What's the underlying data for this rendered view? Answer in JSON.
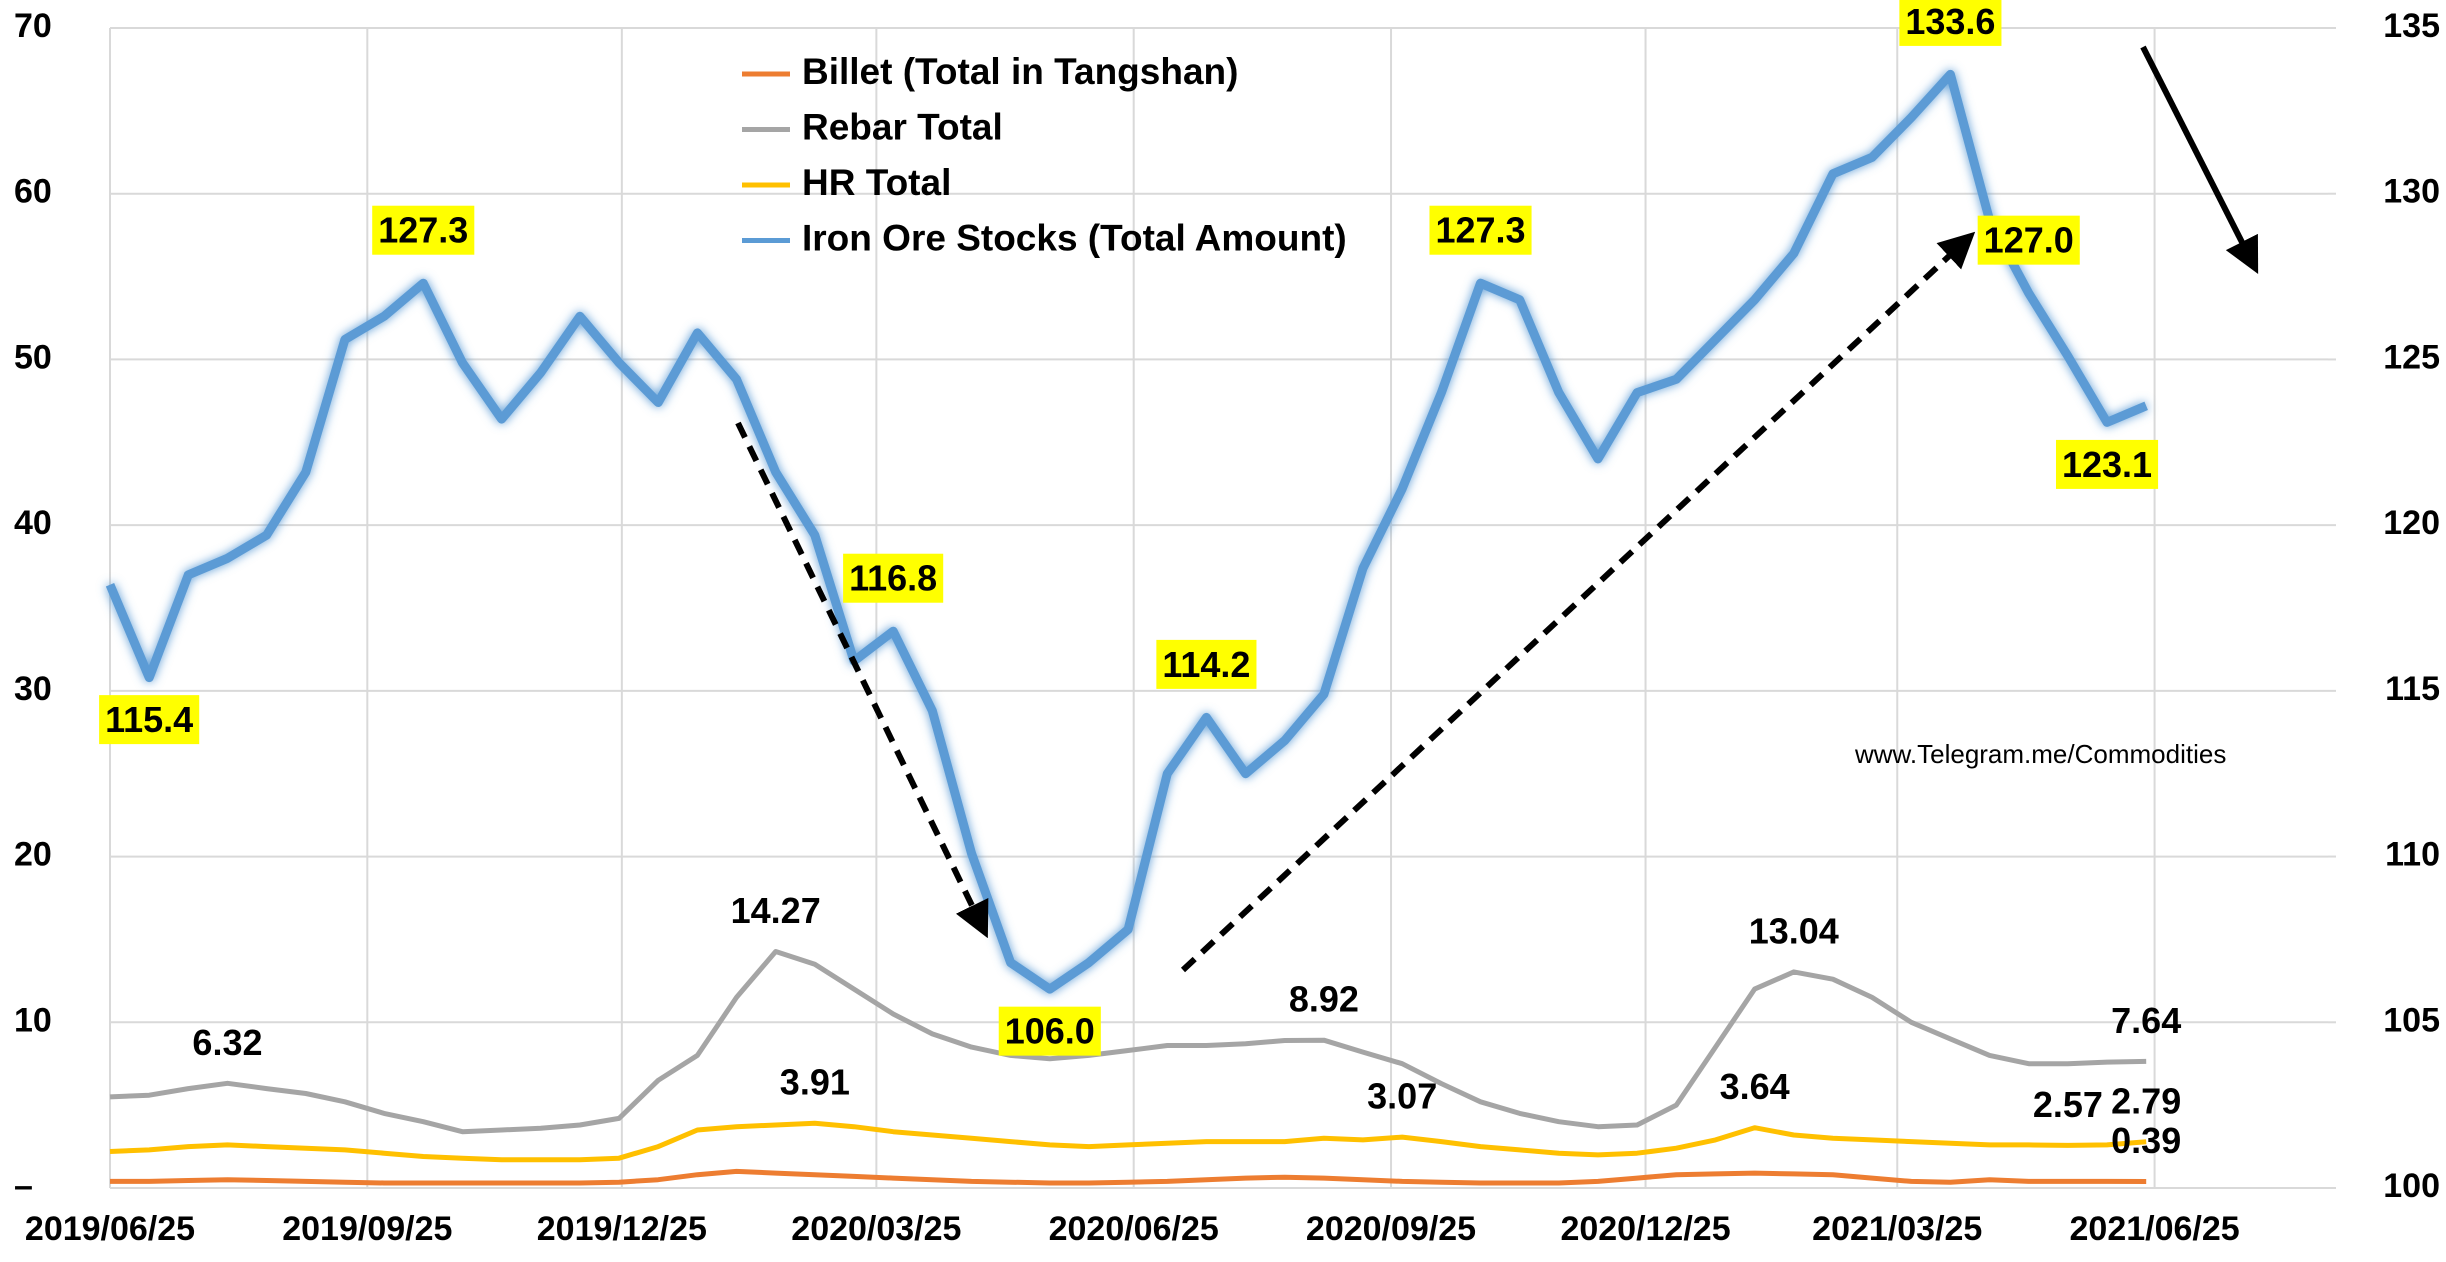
{
  "chart_data": {
    "type": "line",
    "x": [
      "2019/06/25",
      "2019/07/09",
      "2019/07/23",
      "2019/08/06",
      "2019/08/20",
      "2019/09/03",
      "2019/09/17",
      "2019/10/01",
      "2019/10/15",
      "2019/10/29",
      "2019/11/12",
      "2019/11/26",
      "2019/12/10",
      "2019/12/24",
      "2020/01/07",
      "2020/01/21",
      "2020/02/04",
      "2020/02/18",
      "2020/03/03",
      "2020/03/17",
      "2020/03/31",
      "2020/04/14",
      "2020/04/28",
      "2020/05/12",
      "2020/05/26",
      "2020/06/09",
      "2020/06/23",
      "2020/07/07",
      "2020/07/21",
      "2020/08/04",
      "2020/08/18",
      "2020/09/01",
      "2020/09/15",
      "2020/09/29",
      "2020/10/13",
      "2020/10/27",
      "2020/11/10",
      "2020/11/24",
      "2020/12/08",
      "2020/12/22",
      "2021/01/05",
      "2021/01/19",
      "2021/02/02",
      "2021/02/16",
      "2021/03/02",
      "2021/03/16",
      "2021/03/30",
      "2021/04/13",
      "2021/04/27",
      "2021/05/11",
      "2021/05/25",
      "2021/06/08",
      "2021/06/22"
    ],
    "xlim": [
      "2019/06/25",
      "2021/08/26"
    ],
    "xticks": [
      "2019/06/25",
      "2019/09/25",
      "2019/12/25",
      "2020/03/25",
      "2020/06/25",
      "2020/09/25",
      "2020/12/25",
      "2021/03/25",
      "2021/06/25"
    ],
    "ylim": [
      0,
      70
    ],
    "yticks": [
      {
        "value": 0,
        "label": "–"
      },
      10,
      20,
      30,
      40,
      50,
      60,
      70
    ],
    "y2lim": [
      100,
      135
    ],
    "y2ticks": [
      100,
      105,
      110,
      115,
      120,
      125,
      130,
      135
    ],
    "grid": true,
    "annotation": "www.Telegram.me/Commodities",
    "series": [
      {
        "name": "Billet (Total in Tangshan)",
        "color": "#ed7d31",
        "values": [
          0.4,
          0.4,
          0.45,
          0.5,
          0.45,
          0.4,
          0.35,
          0.3,
          0.3,
          0.3,
          0.3,
          0.3,
          0.3,
          0.35,
          0.5,
          0.8,
          1.0,
          0.9,
          0.8,
          0.7,
          0.6,
          0.5,
          0.4,
          0.35,
          0.3,
          0.3,
          0.35,
          0.4,
          0.5,
          0.6,
          0.65,
          0.6,
          0.5,
          0.4,
          0.35,
          0.3,
          0.3,
          0.3,
          0.4,
          0.6,
          0.8,
          0.85,
          0.9,
          0.85,
          0.8,
          0.6,
          0.4,
          0.35,
          0.5,
          0.4,
          0.4,
          0.4,
          0.39
        ],
        "value_labels": [
          null,
          null,
          null,
          null,
          null,
          null,
          null,
          null,
          null,
          null,
          null,
          null,
          null,
          null,
          null,
          null,
          null,
          null,
          null,
          null,
          null,
          null,
          null,
          null,
          null,
          null,
          null,
          null,
          null,
          null,
          null,
          null,
          null,
          null,
          null,
          null,
          null,
          null,
          null,
          null,
          null,
          null,
          null,
          null,
          null,
          null,
          null,
          null,
          null,
          null,
          null,
          null,
          "0.39"
        ]
      },
      {
        "name": "Rebar Total",
        "color": "#a5a5a5",
        "values": [
          5.5,
          5.6,
          6.0,
          6.32,
          6.0,
          5.7,
          5.2,
          4.5,
          4.0,
          3.4,
          3.5,
          3.6,
          3.8,
          4.2,
          6.5,
          8.0,
          11.5,
          14.27,
          13.5,
          12.0,
          10.5,
          9.3,
          8.5,
          8.0,
          7.8,
          8.0,
          8.3,
          8.6,
          8.6,
          8.7,
          8.9,
          8.92,
          8.2,
          7.5,
          6.3,
          5.2,
          4.5,
          4.0,
          3.7,
          3.8,
          5.0,
          8.5,
          12.0,
          13.04,
          12.6,
          11.5,
          10.0,
          9.0,
          8.0,
          7.5,
          7.5,
          7.6,
          7.64
        ],
        "value_labels": [
          null,
          null,
          null,
          "6.32",
          null,
          null,
          null,
          null,
          null,
          null,
          null,
          null,
          null,
          null,
          null,
          null,
          null,
          "14.27",
          null,
          null,
          null,
          null,
          null,
          null,
          null,
          null,
          null,
          null,
          null,
          null,
          null,
          "8.92",
          null,
          null,
          null,
          null,
          null,
          null,
          null,
          null,
          null,
          null,
          null,
          "13.04",
          null,
          null,
          null,
          null,
          null,
          null,
          null,
          null,
          "7.64"
        ]
      },
      {
        "name": "HR Total",
        "color": "#ffc000",
        "values": [
          2.2,
          2.3,
          2.5,
          2.6,
          2.5,
          2.4,
          2.3,
          2.1,
          1.9,
          1.8,
          1.7,
          1.7,
          1.7,
          1.8,
          2.5,
          3.5,
          3.7,
          3.8,
          3.91,
          3.7,
          3.4,
          3.2,
          3.0,
          2.8,
          2.6,
          2.5,
          2.6,
          2.7,
          2.8,
          2.8,
          2.8,
          3.0,
          2.9,
          3.07,
          2.8,
          2.5,
          2.3,
          2.1,
          2.0,
          2.1,
          2.4,
          2.9,
          3.64,
          3.2,
          3.0,
          2.9,
          2.8,
          2.7,
          2.6,
          2.6,
          2.57,
          2.6,
          2.79
        ],
        "value_labels": [
          null,
          null,
          null,
          null,
          null,
          null,
          null,
          null,
          null,
          null,
          null,
          null,
          null,
          null,
          null,
          null,
          null,
          null,
          "3.91",
          null,
          null,
          null,
          null,
          null,
          null,
          null,
          null,
          null,
          null,
          null,
          null,
          null,
          null,
          "3.07",
          null,
          null,
          null,
          null,
          null,
          null,
          null,
          null,
          "3.64",
          null,
          null,
          null,
          null,
          null,
          null,
          null,
          "2.57",
          null,
          "2.79"
        ]
      },
      {
        "name": "Iron Ore Stocks (Total Amount)",
        "color": "#5b9bd5",
        "axis": "y2",
        "values": [
          118.2,
          115.4,
          118.5,
          119.0,
          119.7,
          121.6,
          125.6,
          126.3,
          127.3,
          124.9,
          123.2,
          124.6,
          126.3,
          124.9,
          123.7,
          125.8,
          124.4,
          121.6,
          119.7,
          115.9,
          116.8,
          114.4,
          110.1,
          106.8,
          106.0,
          106.8,
          107.8,
          112.5,
          114.2,
          112.5,
          113.5,
          114.9,
          118.7,
          121.1,
          124.0,
          127.3,
          126.8,
          124.0,
          122.0,
          124.0,
          124.4,
          125.6,
          126.8,
          128.2,
          130.6,
          131.1,
          132.3,
          133.6,
          129.2,
          127.0,
          125.1,
          123.1,
          123.6
        ],
        "value_labels": [
          null,
          "115.4",
          null,
          null,
          null,
          null,
          null,
          null,
          "127.3",
          null,
          null,
          null,
          null,
          null,
          null,
          null,
          null,
          null,
          null,
          null,
          "116.8",
          null,
          null,
          null,
          "106.0",
          null,
          null,
          null,
          "114.2",
          null,
          null,
          null,
          null,
          null,
          null,
          "127.3",
          null,
          null,
          null,
          null,
          null,
          null,
          null,
          null,
          null,
          null,
          null,
          "133.6",
          null,
          "127.0",
          null,
          "123.1",
          null
        ]
      }
    ]
  }
}
